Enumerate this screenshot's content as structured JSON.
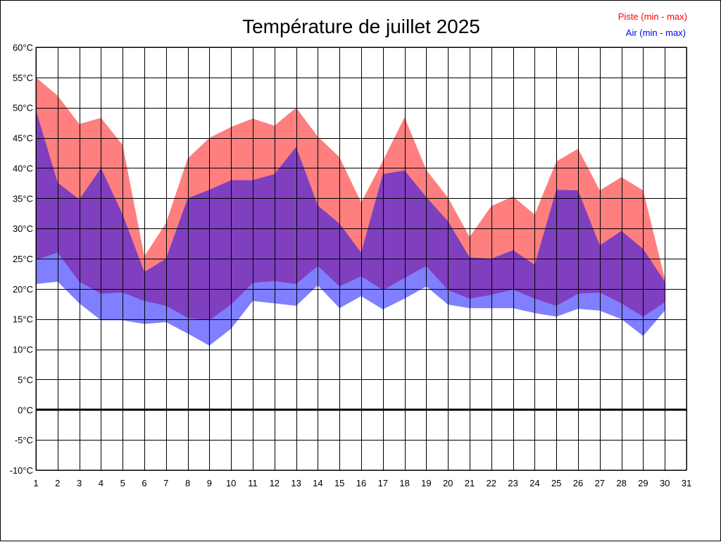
{
  "chart_data": {
    "type": "area",
    "title": "Température de juillet 2025",
    "legend": {
      "placement": "top-right",
      "entries": [
        {
          "label": "Piste (min - max)",
          "color": "#ff0000"
        },
        {
          "label": "Air (min - max)",
          "color": "#0000ff"
        }
      ]
    },
    "x": [
      1,
      2,
      3,
      4,
      5,
      6,
      7,
      8,
      9,
      10,
      11,
      12,
      13,
      14,
      15,
      16,
      17,
      18,
      19,
      20,
      21,
      22,
      23,
      24,
      25,
      26,
      27,
      28,
      29,
      30
    ],
    "xlim": [
      1,
      31
    ],
    "x_ticks": [
      "1",
      "2",
      "3",
      "4",
      "5",
      "6",
      "7",
      "8",
      "9",
      "10",
      "11",
      "12",
      "13",
      "14",
      "15",
      "16",
      "17",
      "18",
      "19",
      "20",
      "21",
      "22",
      "23",
      "24",
      "25",
      "26",
      "27",
      "28",
      "29",
      "30",
      "31"
    ],
    "ylim": [
      -10,
      60
    ],
    "y_ticks": [
      "60°C",
      "55°C",
      "50°C",
      "45°C",
      "40°C",
      "35°C",
      "30°C",
      "25°C",
      "20°C",
      "15°C",
      "10°C",
      "5°C",
      "0°C",
      "-5°C",
      "-10°C"
    ],
    "y_tick_values": [
      60,
      55,
      50,
      45,
      40,
      35,
      30,
      25,
      20,
      15,
      10,
      5,
      0,
      -5,
      -10
    ],
    "grid": true,
    "zero_line": true,
    "series": [
      {
        "name": "Piste (min - max)",
        "color": "#ff0000",
        "opacity": 0.5,
        "min": [
          24.8,
          26.0,
          21.2,
          19.2,
          19.4,
          18.0,
          17.2,
          15.2,
          14.8,
          17.4,
          21.0,
          21.3,
          20.8,
          23.8,
          20.4,
          22.1,
          19.8,
          21.8,
          23.8,
          19.8,
          18.4,
          19.0,
          19.9,
          18.4,
          17.2,
          19.2,
          19.4,
          17.6,
          15.4,
          17.8
        ],
        "max": [
          55.0,
          52.0,
          47.3,
          48.3,
          43.8,
          25.4,
          30.9,
          41.6,
          45.0,
          46.8,
          48.2,
          47.0,
          50.0,
          45.2,
          41.8,
          34.3,
          41.2,
          48.4,
          39.7,
          35.1,
          28.6,
          33.7,
          35.3,
          32.3,
          41.1,
          43.2,
          36.3,
          38.5,
          36.3,
          21.7
        ]
      },
      {
        "name": "Air (min - max)",
        "color": "#0000ff",
        "opacity": 0.5,
        "min": [
          20.8,
          21.2,
          17.6,
          14.8,
          14.8,
          14.2,
          14.5,
          12.6,
          10.6,
          13.4,
          18.0,
          17.6,
          17.2,
          20.6,
          16.8,
          18.8,
          16.6,
          18.4,
          20.4,
          17.4,
          16.8,
          16.8,
          16.8,
          16.0,
          15.4,
          16.7,
          16.4,
          15.0,
          12.2,
          16.4
        ],
        "max": [
          49.6,
          37.6,
          34.8,
          40.0,
          32.3,
          22.8,
          25.0,
          35.0,
          36.4,
          38.0,
          38.0,
          39.0,
          43.5,
          33.8,
          30.8,
          26.0,
          39.0,
          39.6,
          35.2,
          31.2,
          25.2,
          25.0,
          26.4,
          24.0,
          36.4,
          36.3,
          27.2,
          29.6,
          26.6,
          21.2
        ]
      }
    ]
  }
}
